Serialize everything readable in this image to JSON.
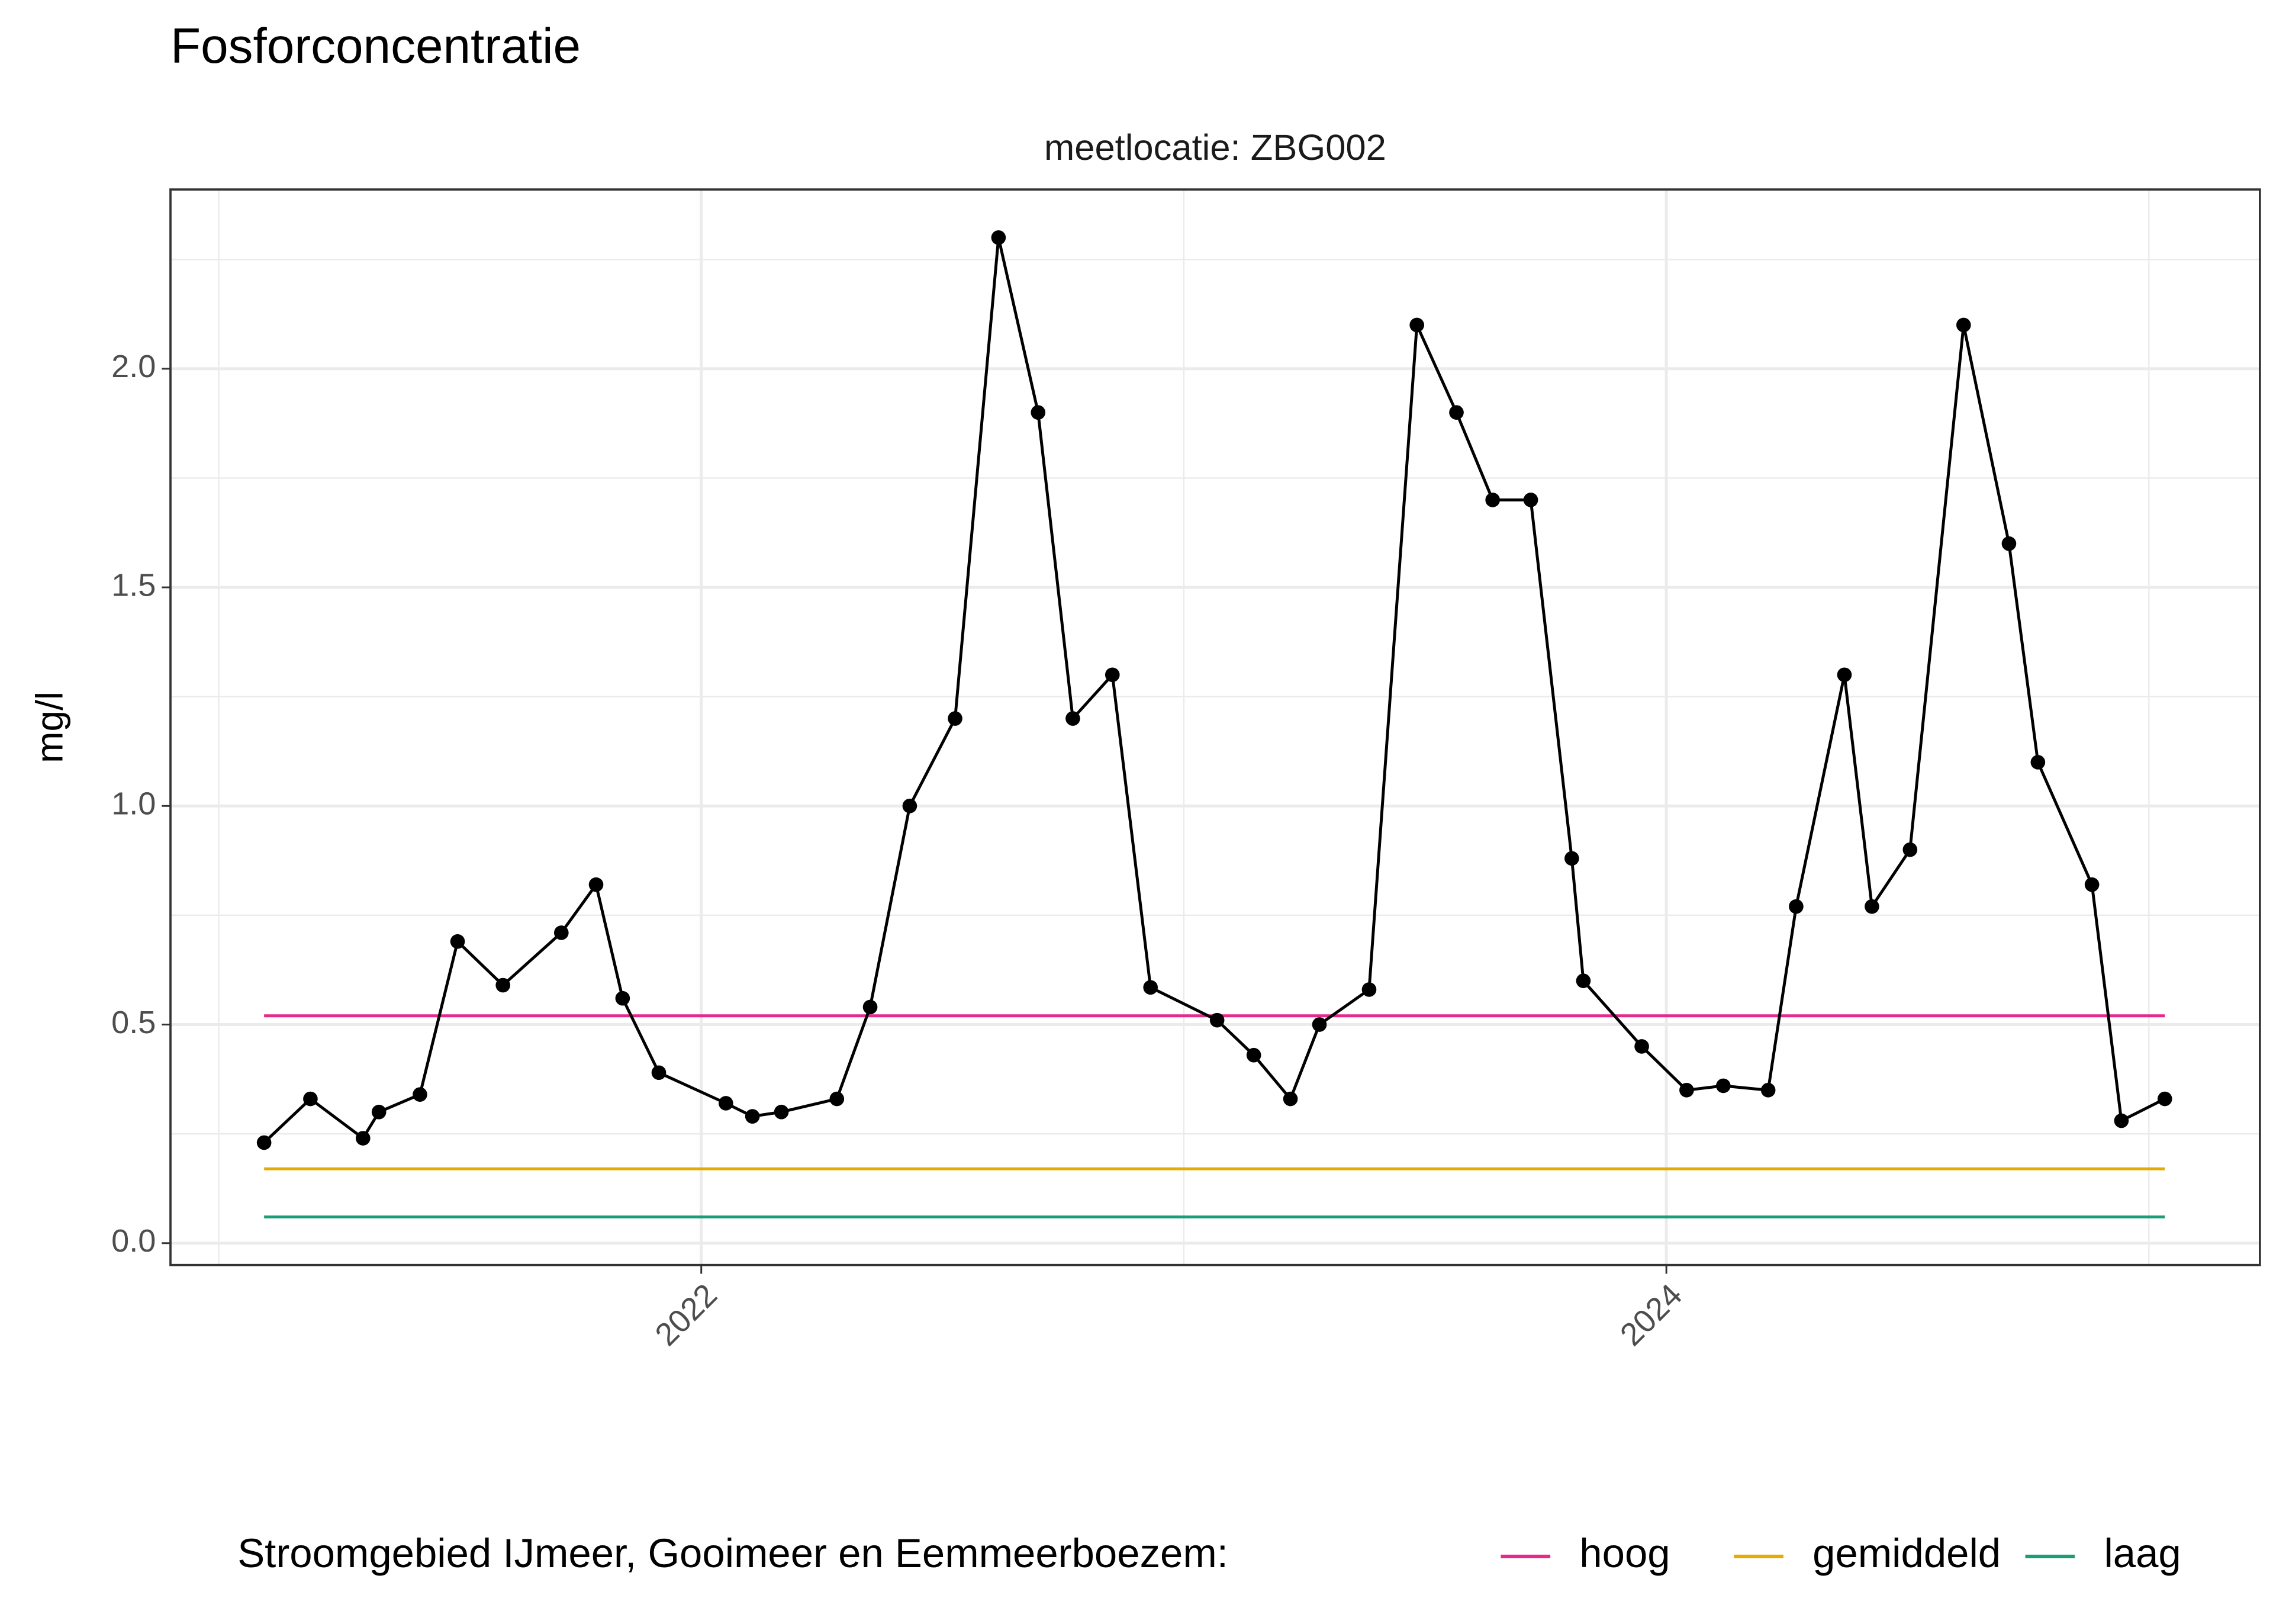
{
  "chart_data": {
    "type": "line",
    "title": "Fosforconcentratie",
    "subtitle": "meetlocatie: ZBG002",
    "ylabel": "mg/l",
    "legend_title": "Stroomgebied IJmeer, Gooimeer en Eemmeerboezem:",
    "legend_position": "bottom",
    "grid": true,
    "xlim": [
      2020.9,
      2025.23
    ],
    "xticks": [
      2022,
      2024
    ],
    "minor_xticks": [
      2021,
      2023,
      2025
    ],
    "ylim": [
      -0.05,
      2.41
    ],
    "yticks": [
      {
        "value": 0,
        "label": "0.0"
      },
      0.5,
      {
        "value": 1,
        "label": "1.0"
      },
      1.5,
      {
        "value": 2,
        "label": "2.0"
      }
    ],
    "minor_yticks": [
      0.25,
      0.75,
      1.25,
      1.75,
      2.25
    ],
    "series": [
      {
        "color": "#000000",
        "markers": true,
        "x": [
          2021.094,
          2021.19,
          2021.299,
          2021.332,
          2021.417,
          2021.495,
          2021.589,
          2021.71,
          2021.782,
          2021.837,
          2021.912,
          2022.051,
          2022.106,
          2022.166,
          2022.281,
          2022.35,
          2022.432,
          2022.526,
          2022.616,
          2022.698,
          2022.77,
          2022.852,
          2022.931,
          2023.069,
          2023.145,
          2023.221,
          2023.281,
          2023.384,
          2023.483,
          2023.565,
          2023.64,
          2023.719,
          2023.804,
          2023.828,
          2023.949,
          2024.042,
          2024.118,
          2024.211,
          2024.269,
          2024.369,
          2024.426,
          2024.505,
          2024.616,
          2024.71,
          2024.77,
          2024.882,
          2024.943,
          2025.033
        ],
        "values": [
          0.23,
          0.33,
          0.24,
          0.3,
          0.34,
          0.69,
          0.59,
          0.71,
          0.82,
          0.56,
          0.39,
          0.32,
          0.29,
          0.3,
          0.33,
          0.54,
          1.0,
          1.2,
          2.3,
          1.9,
          1.2,
          1.3,
          0.585,
          0.51,
          0.43,
          0.33,
          0.5,
          0.58,
          2.1,
          1.9,
          1.7,
          1.7,
          0.88,
          0.6,
          0.45,
          0.35,
          0.36,
          0.35,
          0.77,
          1.3,
          0.77,
          0.9,
          2.1,
          1.6,
          1.1,
          0.82,
          0.28,
          0.33
        ]
      },
      {
        "name": "hoog",
        "color": "#e7298a",
        "x": [
          2021.094,
          2025.033
        ],
        "values": [
          0.52,
          0.52
        ]
      },
      {
        "name": "gemiddeld",
        "color": "#e6ab02",
        "x": [
          2021.094,
          2025.033
        ],
        "values": [
          0.17,
          0.17
        ]
      },
      {
        "name": "laag",
        "color": "#1b9e77",
        "x": [
          2021.094,
          2025.033
        ],
        "values": [
          0.06,
          0.06
        ]
      }
    ]
  }
}
